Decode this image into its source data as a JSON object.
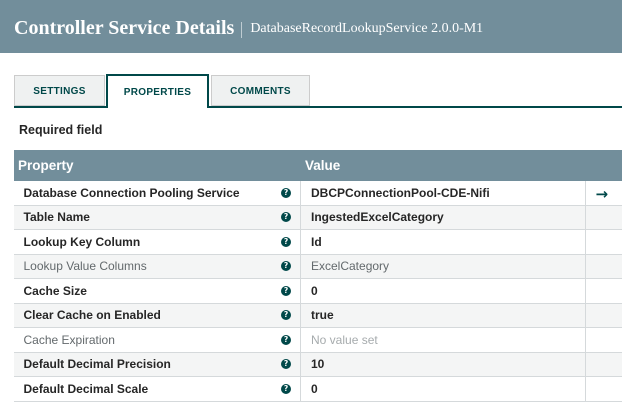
{
  "dialog": {
    "title": "Controller Service Details",
    "subtitle": "DatabaseRecordLookupService 2.0.0-M1"
  },
  "tabs": [
    {
      "id": "settings",
      "label": "SETTINGS",
      "active": false
    },
    {
      "id": "properties",
      "label": "PROPERTIES",
      "active": true
    },
    {
      "id": "comments",
      "label": "COMMENTS",
      "active": false
    }
  ],
  "required_field_hint": "Required field",
  "properties_table": {
    "columns": {
      "property": "Property",
      "value": "Value"
    },
    "rows": [
      {
        "property": "Database Connection Pooling Service",
        "value": "DBCPConnectionPool-CDE-Nifi",
        "required": true,
        "unset": false,
        "goto": true
      },
      {
        "property": "Table Name",
        "value": "IngestedExcelCategory",
        "required": true,
        "unset": false,
        "goto": false
      },
      {
        "property": "Lookup Key Column",
        "value": "Id",
        "required": true,
        "unset": false,
        "goto": false
      },
      {
        "property": "Lookup Value Columns",
        "value": "ExcelCategory",
        "required": false,
        "unset": false,
        "goto": false
      },
      {
        "property": "Cache Size",
        "value": "0",
        "required": true,
        "unset": false,
        "goto": false
      },
      {
        "property": "Clear Cache on Enabled",
        "value": "true",
        "required": true,
        "unset": false,
        "goto": false
      },
      {
        "property": "Cache Expiration",
        "value": "No value set",
        "required": false,
        "unset": true,
        "goto": false
      },
      {
        "property": "Default Decimal Precision",
        "value": "10",
        "required": true,
        "unset": false,
        "goto": false
      },
      {
        "property": "Default Decimal Scale",
        "value": "0",
        "required": true,
        "unset": false,
        "goto": false
      }
    ]
  },
  "icons": {
    "help": "?",
    "goto": "→"
  },
  "colors": {
    "header_bg": "#728e9b",
    "accent_dark": "#004849",
    "row_alt_bg": "#f4f5f5",
    "row_border": "#d5d9db",
    "text_primary": "#262626",
    "text_optional": "#63696c",
    "text_unset": "#a6abad"
  }
}
